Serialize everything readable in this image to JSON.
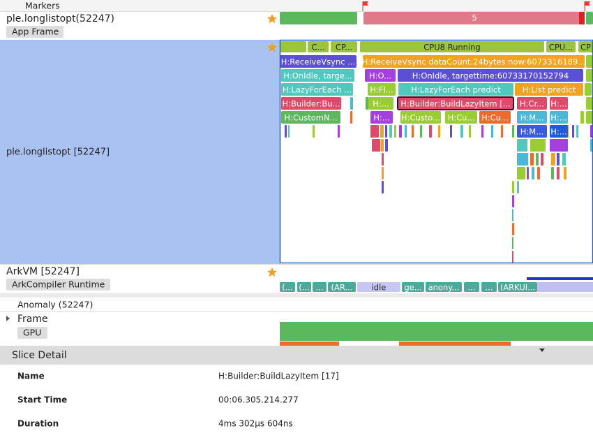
{
  "markers": "Markers",
  "app_row": {
    "title": "ple.longlistopt(52247)",
    "tag": "App Frame",
    "frame": "5"
  },
  "thread_row": {
    "title": "ple.longlistopt [52247]"
  },
  "slices": [
    [
      "C...",
      "CP...",
      "CPU8 Running",
      "CPU...",
      "CP"
    ],
    [
      "H:ReceiveVsync ...",
      "H:ReceiveVsync dataCount:24bytes now:6073316189..."
    ],
    [
      "H:OnIdle, targe...",
      "H:O...",
      "H:OnIdle, targettime:60733170152794"
    ],
    [
      "H:LazyForEach ...",
      "H:Fl...",
      "H:LazyForEach predict",
      "H:List predict"
    ],
    [
      "H:Builder:Bu...",
      "H:...",
      "H:Builder:BuildLazyItem [...",
      "H:Cr...",
      "H:..."
    ],
    [
      "H:CustomN...",
      "H:...",
      "H:Custo...",
      "H:Cu...",
      "H:Cu...",
      "H:M...",
      "H:..."
    ],
    [
      "H:M...",
      "H:..."
    ]
  ],
  "arkvm_row": {
    "title": "ArkVM [52247]",
    "tag": "ArkCompiler Runtime",
    "slices": [
      "(...",
      "(...",
      "...",
      "(AR...",
      "idle",
      "ge...",
      "anony...",
      "...",
      "...",
      "(ARKUI..."
    ]
  },
  "anomaly_row": {
    "title": "Anomaly (52247)"
  },
  "frame_row": {
    "title": "Frame",
    "tag": "GPU"
  },
  "detail": {
    "title": "Slice Detail",
    "fields": [
      {
        "label": "Name",
        "value": "H:Builder:BuildLazyItem [17]"
      },
      {
        "label": "Start Time",
        "value": "00:06.305.214.277"
      },
      {
        "label": "Duration",
        "value": "4ms 302μs 604ns"
      }
    ]
  }
}
